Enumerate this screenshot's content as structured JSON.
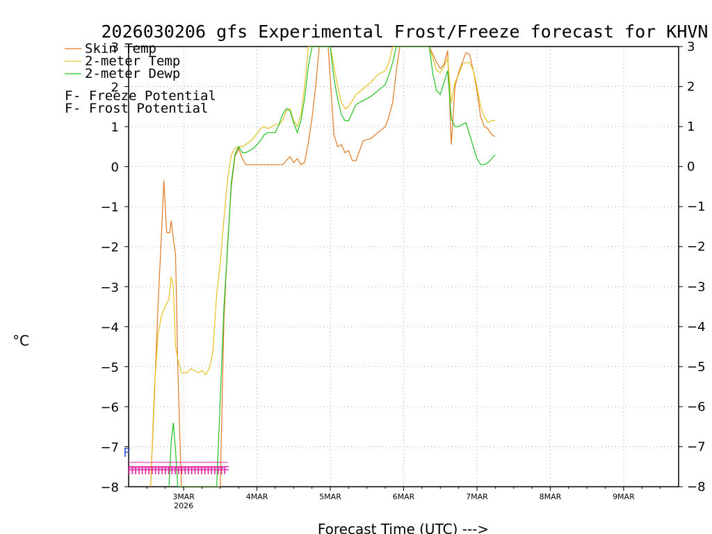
{
  "chart_data": {
    "type": "line",
    "title": "2026030206 gfs Experimental Frost/Freeze forecast for KHVN",
    "ylabel": "°C",
    "xlabel": "Forecast Time (UTC) --->",
    "ylim": [
      -8,
      3
    ],
    "xlim": [
      0,
      7.5
    ],
    "y_ticks": [
      "-8",
      "-7",
      "-6",
      "-5",
      "-4",
      "-3",
      "-2",
      "-1",
      "0",
      "1",
      "2",
      "3"
    ],
    "x_ticks": [
      {
        "x": 0.75,
        "label": "3MAR",
        "sublabel": "2026"
      },
      {
        "x": 1.75,
        "label": "4MAR"
      },
      {
        "x": 2.75,
        "label": "5MAR"
      },
      {
        "x": 3.75,
        "label": "6MAR"
      },
      {
        "x": 4.75,
        "label": "7MAR"
      },
      {
        "x": 5.75,
        "label": "8MAR"
      },
      {
        "x": 6.75,
        "label": "9MAR"
      }
    ],
    "x_units": "days since 2026-03-02 06Z",
    "legend": [
      {
        "label": "Skin Temp",
        "color": "#e07820"
      },
      {
        "label": "2-meter Temp",
        "color": "#e8c020"
      },
      {
        "label": "2-meter Dewp",
        "color": "#20c020"
      }
    ],
    "potential_legend": [
      {
        "symbol": "F",
        "text": " - Freeze Potential",
        "color": "#e020a0"
      },
      {
        "symbol": "F",
        "text": " - Frost Potential",
        "color": "#4060e0"
      }
    ],
    "series": [
      {
        "name": "Skin Temp",
        "color": "#e07820",
        "x": [
          0.3,
          0.35,
          0.4,
          0.45,
          0.48,
          0.52,
          0.56,
          0.58,
          0.61,
          0.64,
          0.67,
          0.72,
          0.75,
          0.8,
          1.25,
          1.3,
          1.35,
          1.4,
          1.45,
          1.5,
          1.55,
          1.6,
          1.65,
          1.7,
          1.75,
          1.85,
          2.0,
          2.1,
          2.15,
          2.2,
          2.25,
          2.3,
          2.35,
          2.4,
          2.45,
          2.5,
          2.55,
          2.6,
          2.65,
          2.72,
          2.75,
          2.8,
          2.85,
          2.9,
          2.95,
          3.0,
          3.05,
          3.1,
          3.2,
          3.3,
          3.4,
          3.5,
          3.55,
          3.6,
          3.65,
          3.7,
          4.1,
          4.15,
          4.2,
          4.25,
          4.3,
          4.35,
          4.4,
          4.45,
          4.5,
          4.55,
          4.6,
          4.65,
          4.7,
          4.75,
          4.8,
          4.85,
          4.9,
          4.95,
          5.0
        ],
        "values": [
          -8,
          -5.8,
          -3.5,
          -1.6,
          -0.35,
          -1.65,
          -1.65,
          -1.35,
          -1.8,
          -2.2,
          -5,
          -8,
          -8,
          -8,
          -8,
          -3.8,
          -1.9,
          -0.5,
          0.25,
          0.45,
          0.2,
          0.05,
          0.05,
          0.05,
          0.05,
          0.05,
          0.05,
          0.05,
          0.15,
          0.25,
          0.1,
          0.2,
          0.05,
          0.1,
          0.6,
          1.2,
          2.0,
          3.0,
          3.0,
          3.0,
          2.2,
          0.8,
          0.5,
          0.55,
          0.35,
          0.4,
          0.15,
          0.15,
          0.65,
          0.7,
          0.85,
          1.0,
          1.25,
          1.6,
          2.4,
          3.0,
          3.0,
          2.8,
          2.6,
          2.45,
          2.55,
          2.9,
          0.55,
          2.0,
          2.35,
          2.6,
          2.85,
          2.8,
          2.4,
          1.9,
          1.25,
          1.0,
          0.95,
          0.8,
          0.75
        ]
      },
      {
        "name": "2-meter Temp",
        "color": "#e8c020",
        "x": [
          0.3,
          0.35,
          0.4,
          0.45,
          0.5,
          0.55,
          0.58,
          0.61,
          0.64,
          0.67,
          0.72,
          0.75,
          0.8,
          0.85,
          0.9,
          0.95,
          1.0,
          1.05,
          1.1,
          1.15,
          1.2,
          1.25,
          1.3,
          1.35,
          1.4,
          1.45,
          1.5,
          1.55,
          1.6,
          1.7,
          1.8,
          1.85,
          1.9,
          2.0,
          2.05,
          2.1,
          2.15,
          2.2,
          2.25,
          2.3,
          2.35,
          2.4,
          2.45,
          2.5,
          2.55,
          2.6,
          2.75,
          2.8,
          2.85,
          2.9,
          2.95,
          3.0,
          3.05,
          3.1,
          3.2,
          3.3,
          3.4,
          3.5,
          3.55,
          3.6,
          3.65,
          4.1,
          4.15,
          4.2,
          4.25,
          4.3,
          4.35,
          4.4,
          4.45,
          4.5,
          4.55,
          4.6,
          4.65,
          4.7,
          4.75,
          4.8,
          4.85,
          4.9,
          4.95,
          5.0
        ],
        "values": [
          -8,
          -5.6,
          -4.2,
          -3.7,
          -3.5,
          -3.3,
          -2.75,
          -3.0,
          -4.5,
          -4.8,
          -5.15,
          -5.15,
          -5.15,
          -5.05,
          -5.1,
          -5.15,
          -5.1,
          -5.2,
          -5.05,
          -4.6,
          -3.2,
          -2.4,
          -1.3,
          -0.3,
          0.3,
          0.45,
          0.5,
          0.5,
          0.55,
          0.7,
          0.95,
          1.0,
          0.95,
          1.05,
          1.05,
          1.15,
          1.4,
          1.45,
          1.15,
          1.0,
          1.3,
          2.0,
          3.0,
          3.0,
          3.0,
          3.0,
          3.0,
          2.5,
          2.0,
          1.6,
          1.45,
          1.5,
          1.65,
          1.8,
          1.95,
          2.1,
          2.3,
          2.4,
          2.6,
          3.0,
          3.0,
          3.0,
          2.7,
          2.4,
          2.35,
          2.5,
          2.7,
          1.6,
          2.1,
          2.3,
          2.55,
          2.6,
          2.6,
          2.4,
          2.0,
          1.5,
          1.25,
          1.1,
          1.15,
          1.15
        ]
      },
      {
        "name": "2-meter Dewp",
        "color": "#20c020",
        "x": [
          0.55,
          0.58,
          0.61,
          0.64,
          0.67,
          1.2,
          1.25,
          1.3,
          1.35,
          1.4,
          1.45,
          1.5,
          1.55,
          1.6,
          1.7,
          1.8,
          1.85,
          1.9,
          2.0,
          2.05,
          2.1,
          2.15,
          2.2,
          2.25,
          2.3,
          2.35,
          2.4,
          2.45,
          2.5,
          2.55,
          2.6,
          2.75,
          2.8,
          2.85,
          2.9,
          2.95,
          3.0,
          3.05,
          3.1,
          3.2,
          3.3,
          3.4,
          3.5,
          3.55,
          3.6,
          3.65,
          4.1,
          4.15,
          4.2,
          4.25,
          4.3,
          4.35,
          4.4,
          4.45,
          4.5,
          4.55,
          4.6,
          4.65,
          4.7,
          4.75,
          4.8,
          4.85,
          4.9,
          4.95,
          5.0
        ],
        "values": [
          -8,
          -6.9,
          -6.4,
          -7.1,
          -8,
          -8,
          -5.8,
          -3.5,
          -2.0,
          -0.4,
          0.3,
          0.5,
          0.35,
          0.35,
          0.45,
          0.65,
          0.8,
          0.85,
          0.85,
          1.05,
          1.3,
          1.45,
          1.4,
          1.1,
          0.85,
          1.15,
          1.7,
          2.5,
          3.0,
          3.0,
          3.0,
          3.0,
          2.2,
          1.7,
          1.3,
          1.15,
          1.15,
          1.35,
          1.55,
          1.65,
          1.75,
          1.9,
          2.05,
          2.3,
          2.6,
          3.0,
          3.0,
          2.3,
          1.9,
          1.8,
          2.1,
          2.4,
          1.2,
          1.0,
          1.0,
          1.05,
          1.1,
          0.8,
          0.5,
          0.2,
          0.05,
          0.05,
          0.1,
          0.2,
          0.3
        ]
      }
    ],
    "freeze_marks": {
      "symbol": "F",
      "color": "#e020a0",
      "x_start": 0.0,
      "x_end": 1.35,
      "step": 0.045
    },
    "frost_marks": {
      "symbol": "F",
      "color": "#4060e0",
      "x": 0.0
    }
  }
}
